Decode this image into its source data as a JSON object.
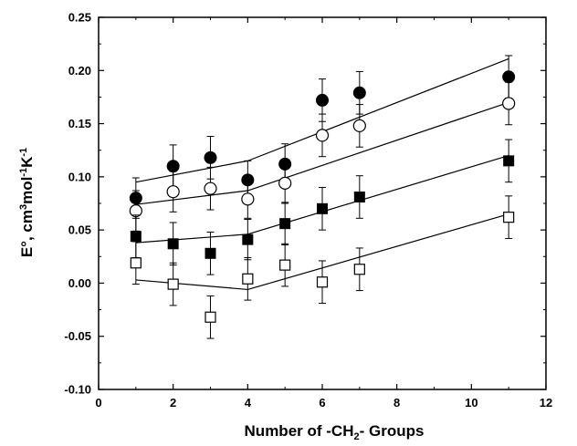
{
  "chart_data": {
    "type": "scatter",
    "title": "",
    "xlabel": "Number of -CH",
    "xlabel_sub": "2",
    "xlabel_tail": "- Groups",
    "ylabel": "E°, cm",
    "ylabel_sup1": "3",
    "ylabel_mid": "mol",
    "ylabel_sup2": "-1",
    "ylabel_mid2": "K",
    "ylabel_sup3": "-1",
    "xlim": [
      0,
      12
    ],
    "ylim": [
      -0.1,
      0.25
    ],
    "x_ticks": [
      "0",
      "2",
      "4",
      "6",
      "8",
      "10",
      "12"
    ],
    "y_ticks": [
      "-0.10",
      "-0.05",
      "0.00",
      "0.05",
      "0.10",
      "0.15",
      "0.20",
      "0.25"
    ],
    "x_tick_values": [
      0,
      2,
      4,
      6,
      8,
      10,
      12
    ],
    "y_tick_values": [
      -0.1,
      -0.05,
      0.0,
      0.05,
      0.1,
      0.15,
      0.2,
      0.25
    ],
    "grid": false,
    "series": [
      {
        "marker": "filled-circle",
        "x": [
          1,
          2,
          3,
          4,
          5,
          6,
          7,
          11
        ],
        "y": [
          0.08,
          0.11,
          0.118,
          0.097,
          0.112,
          0.172,
          0.179,
          0.194
        ],
        "err": [
          0.019,
          0.02,
          0.02,
          0.018,
          0.019,
          0.02,
          0.02,
          0.02
        ],
        "fit": [
          [
            [
              1,
              0.095
            ],
            [
              4,
              0.115
            ]
          ],
          [
            [
              4,
              0.115
            ],
            [
              11,
              0.211
            ]
          ]
        ]
      },
      {
        "marker": "open-circle",
        "x": [
          1,
          2,
          3,
          4,
          5,
          6,
          7,
          11
        ],
        "y": [
          0.068,
          0.086,
          0.089,
          0.079,
          0.094,
          0.139,
          0.148,
          0.169
        ],
        "err": [
          0.019,
          0.019,
          0.02,
          0.018,
          0.019,
          0.02,
          0.02,
          0.02
        ],
        "fit": [
          [
            [
              1,
              0.074
            ],
            [
              4,
              0.087
            ]
          ],
          [
            [
              4,
              0.087
            ],
            [
              11,
              0.17
            ]
          ]
        ]
      },
      {
        "marker": "filled-square",
        "x": [
          1,
          2,
          3,
          4,
          5,
          6,
          7,
          11
        ],
        "y": [
          0.044,
          0.037,
          0.028,
          0.041,
          0.056,
          0.07,
          0.081,
          0.115
        ],
        "err": [
          0.02,
          0.02,
          0.02,
          0.019,
          0.02,
          0.02,
          0.02,
          0.02
        ],
        "fit": [
          [
            [
              1,
              0.038
            ],
            [
              4,
              0.046
            ]
          ],
          [
            [
              4,
              0.046
            ],
            [
              11,
              0.12
            ]
          ]
        ]
      },
      {
        "marker": "open-square",
        "x": [
          1,
          2,
          3,
          4,
          5,
          6,
          7,
          11
        ],
        "y": [
          0.019,
          -0.001,
          -0.032,
          0.004,
          0.017,
          0.001,
          0.013,
          0.062
        ],
        "err": [
          0.02,
          0.02,
          0.02,
          0.02,
          0.02,
          0.02,
          0.02,
          0.02
        ],
        "fit": [
          [
            [
              1,
              0.003
            ],
            [
              4,
              -0.006
            ]
          ],
          [
            [
              4,
              -0.006
            ],
            [
              11,
              0.065
            ]
          ]
        ]
      }
    ]
  }
}
